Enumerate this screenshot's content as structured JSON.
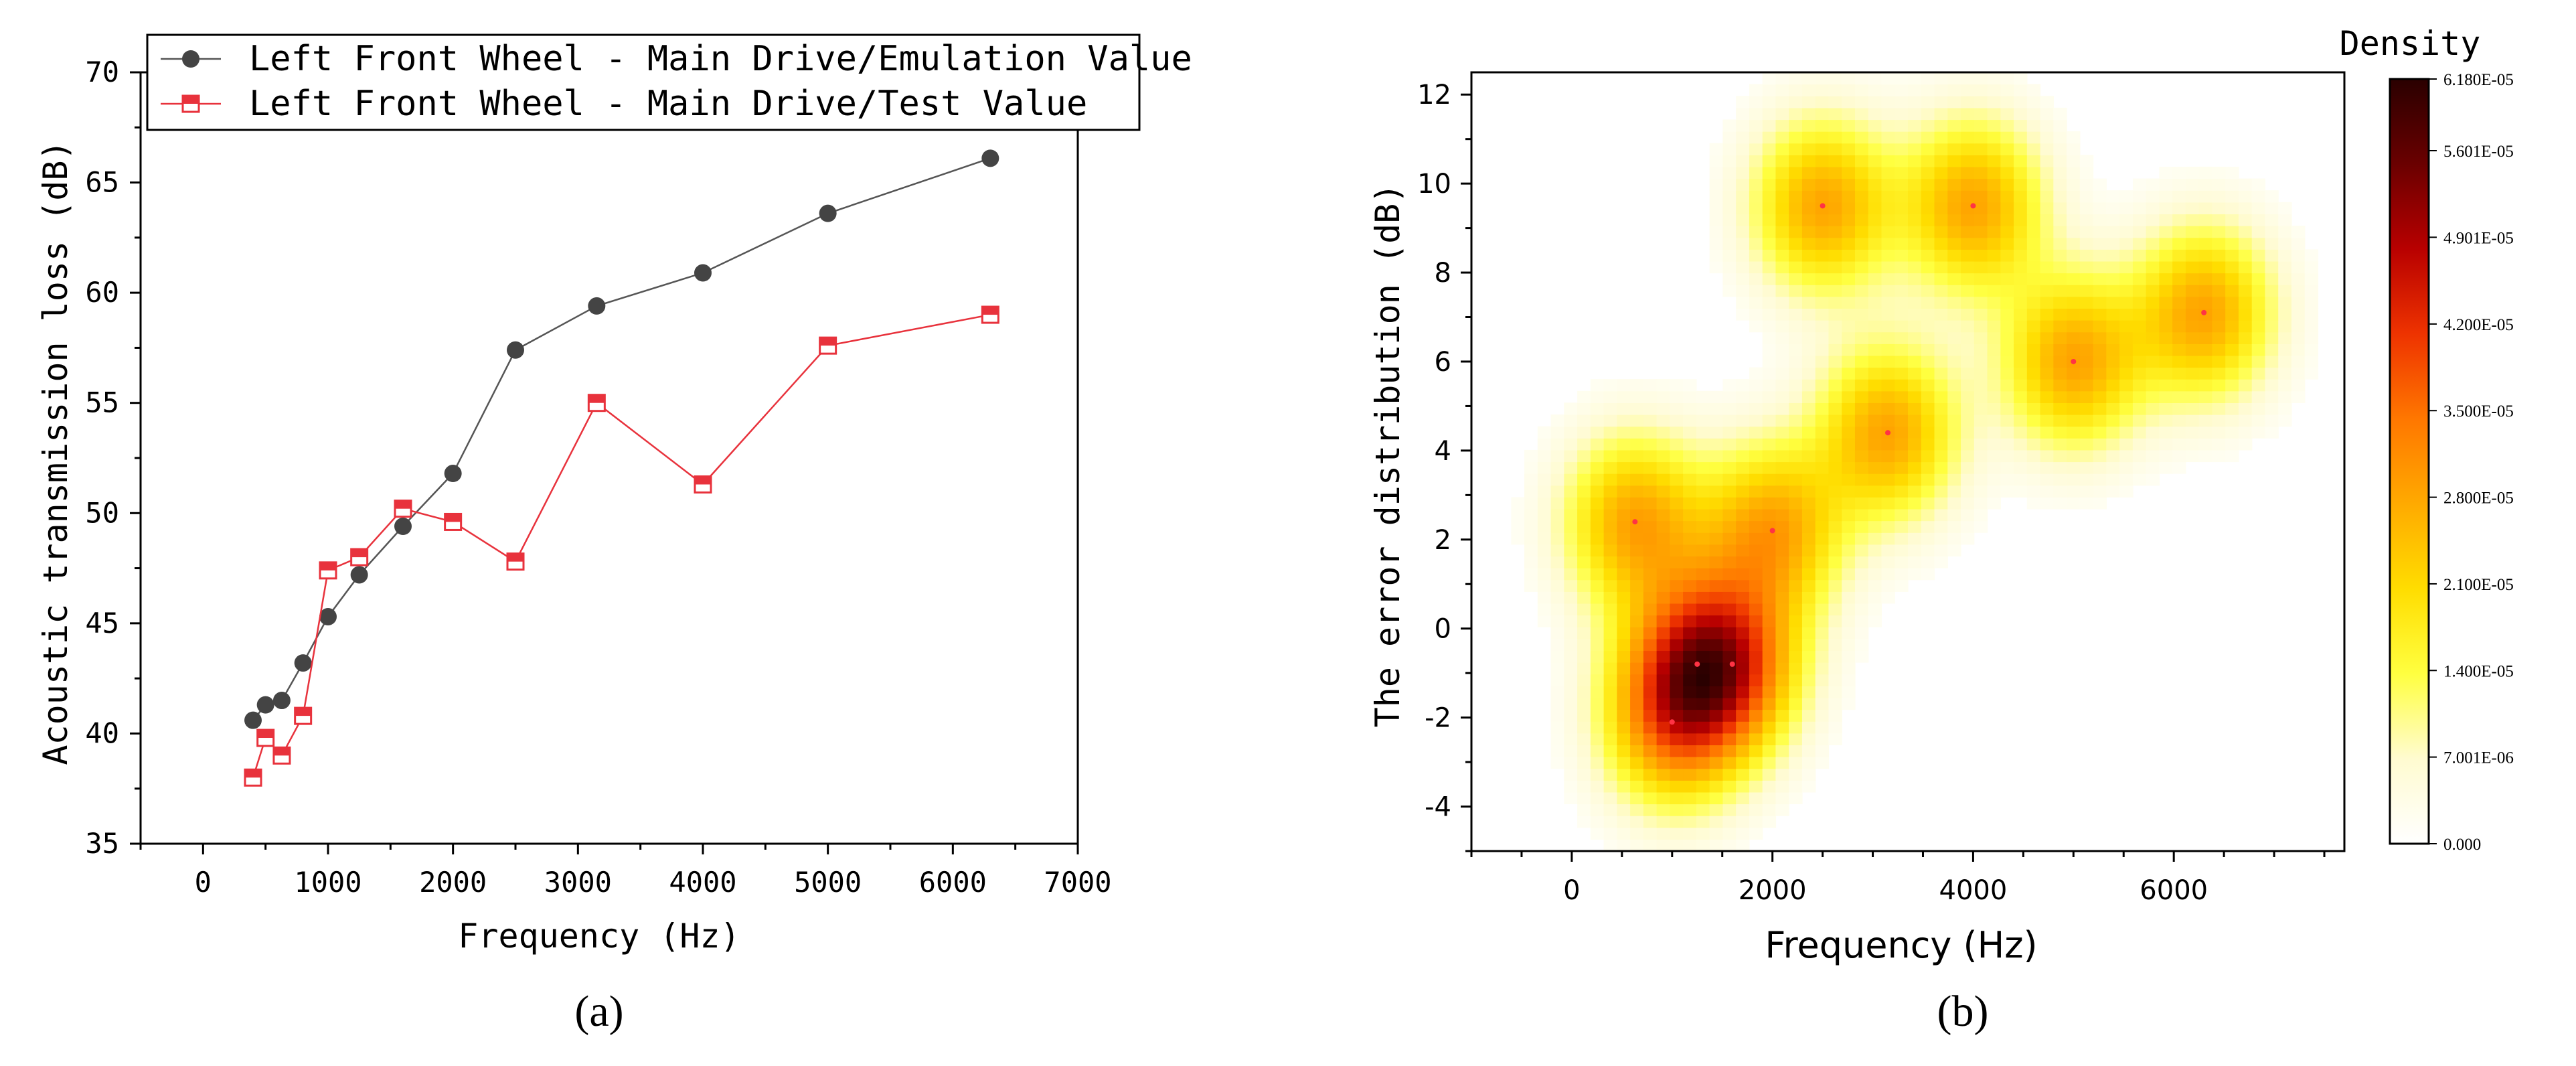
{
  "chart_data": [
    {
      "panel_label": "(a)",
      "type": "line",
      "title": "",
      "xlabel": "Frequency (Hz)",
      "ylabel": "Acoustic transmission loss (dB)",
      "xlim": [
        -500,
        7000
      ],
      "ylim": [
        35,
        70
      ],
      "xticks": [
        0,
        1000,
        2000,
        3000,
        4000,
        5000,
        6000,
        7000
      ],
      "yticks": [
        35,
        40,
        45,
        50,
        55,
        60,
        65,
        70
      ],
      "grid": false,
      "legend_position": "top",
      "series": [
        {
          "name": "Left Front Wheel - Main Drive/Emulation Value",
          "marker": "circle",
          "color": "#444444",
          "line_color": "#555555",
          "x": [
            400,
            500,
            630,
            800,
            1000,
            1250,
            1600,
            2000,
            2500,
            3150,
            4000,
            5000,
            6300
          ],
          "y": [
            40.6,
            41.3,
            41.5,
            43.2,
            45.3,
            47.2,
            49.4,
            51.8,
            57.4,
            59.4,
            60.9,
            63.6,
            66.1
          ]
        },
        {
          "name": "Left Front Wheel - Main Drive/Test Value",
          "marker": "square",
          "color": "#e8323c",
          "line_color": "#e8323c",
          "x": [
            400,
            500,
            630,
            800,
            1000,
            1250,
            1600,
            2000,
            2500,
            3150,
            4000,
            5000,
            6300
          ],
          "y": [
            38.0,
            39.8,
            39.0,
            40.8,
            47.4,
            48.0,
            50.2,
            49.6,
            47.8,
            55.0,
            51.3,
            57.6,
            59.0
          ]
        }
      ]
    },
    {
      "panel_label": "(b)",
      "type": "heatmap",
      "title": "",
      "xlabel": "Frequency (Hz)",
      "ylabel": "The error distribution (dB)",
      "xlim": [
        -1000,
        7700
      ],
      "ylim": [
        -5,
        12.5
      ],
      "xticks": [
        0,
        2000,
        4000,
        6000
      ],
      "yticks": [
        -4,
        -2,
        0,
        2,
        4,
        6,
        8,
        10,
        12
      ],
      "points_x": [
        630,
        1000,
        1250,
        1600,
        2000,
        2500,
        3150,
        4000,
        5000,
        6300
      ],
      "points_y": [
        2.4,
        -2.1,
        -0.8,
        -0.8,
        2.2,
        9.5,
        4.4,
        9.5,
        6.0,
        7.1
      ],
      "colorbar": {
        "title": "Density",
        "min": 0.0,
        "max": 6.18e-05,
        "tick_labels": [
          "0.000",
          "7.001E-06",
          "1.400E-05",
          "2.100E-05",
          "2.800E-05",
          "3.500E-05",
          "4.200E-05",
          "4.901E-05",
          "5.601E-05",
          "6.180E-05"
        ],
        "tick_values": [
          0.0,
          7.001e-06,
          1.4e-05,
          2.1e-05,
          2.8e-05,
          3.5e-05,
          4.2e-05,
          4.901e-05,
          5.601e-05,
          6.18e-05
        ],
        "colors": [
          "#ffffff",
          "#fffbd0",
          "#ffff40",
          "#ffdd00",
          "#ffaa00",
          "#ff7700",
          "#ee3300",
          "#b80000",
          "#6a0000",
          "#2a0000"
        ]
      },
      "kde_bandwidth_x": 480,
      "kde_bandwidth_y": 1.35
    }
  ],
  "colors": {
    "axis": "#000000",
    "point_marker": "#ff3344"
  }
}
